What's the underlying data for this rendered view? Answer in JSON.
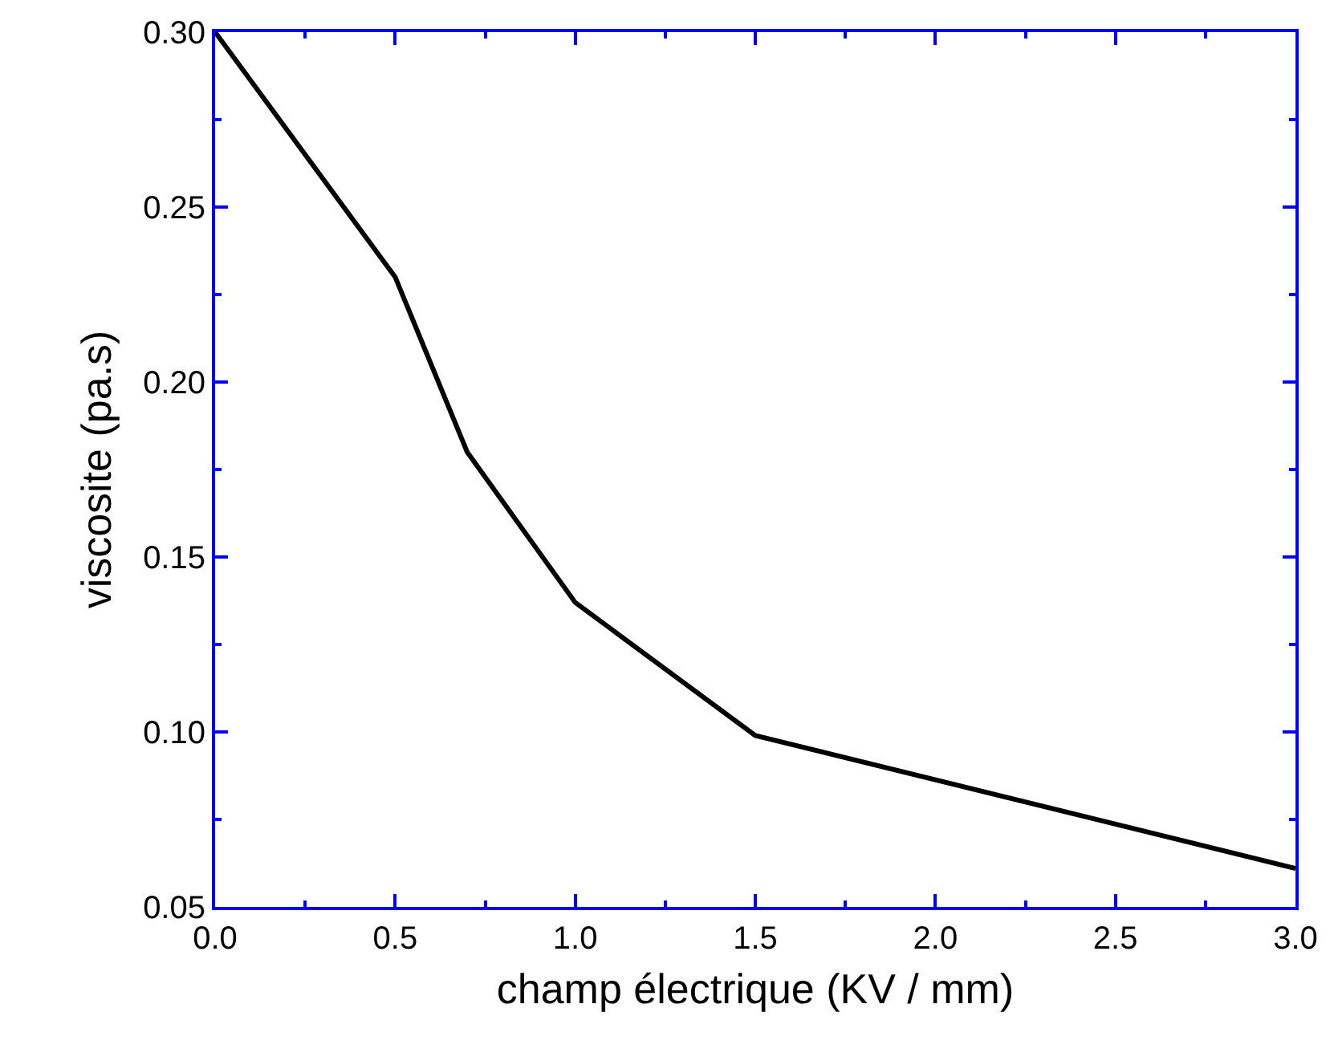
{
  "chart_data": {
    "type": "line",
    "xlabel": "champ électrique (KV / mm)",
    "ylabel": "viscosite (pa.s)",
    "x": [
      0,
      0.5,
      0.7,
      1.0,
      1.5,
      3.0
    ],
    "series": [
      {
        "color": "#000000",
        "values": [
          0.3,
          0.23,
          0.18,
          0.137,
          0.099,
          0.061
        ]
      }
    ],
    "xlim": [
      0,
      3
    ],
    "xticks": [
      {
        "value": 0,
        "label": "0.0"
      },
      {
        "value": 0.5,
        "label": "0.5"
      },
      {
        "value": 1,
        "label": "1.0"
      },
      {
        "value": 1.5,
        "label": "1.5"
      },
      {
        "value": 2,
        "label": "2.0"
      },
      {
        "value": 2.5,
        "label": "2.5"
      },
      {
        "value": 3,
        "label": "3.0"
      }
    ],
    "ylim": [
      0.05,
      0.3
    ],
    "yticks": [
      {
        "value": 0.05,
        "label": "0.05"
      },
      {
        "value": 0.1,
        "label": "0.10"
      },
      {
        "value": 0.15,
        "label": "0.15"
      },
      {
        "value": 0.2,
        "label": "0.20"
      },
      {
        "value": 0.25,
        "label": "0.25"
      },
      {
        "value": 0.3,
        "label": "0.30"
      }
    ],
    "grid": false,
    "marker": "none",
    "line_style": "solid"
  }
}
